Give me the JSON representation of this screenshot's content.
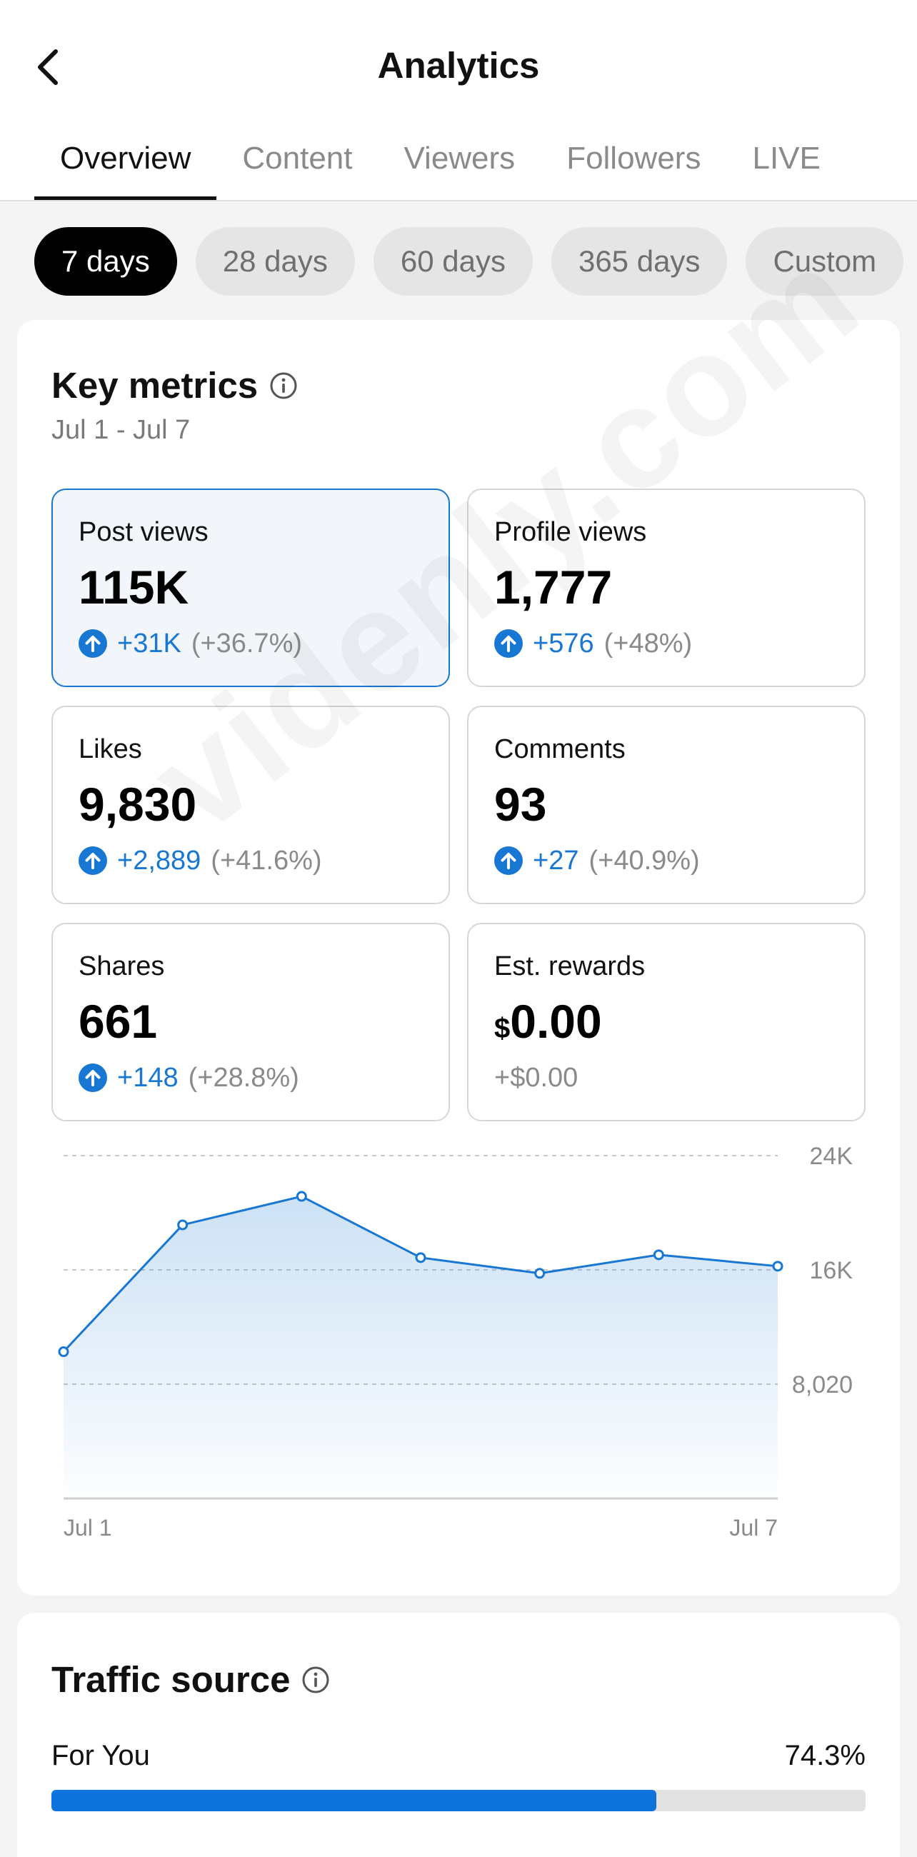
{
  "header": {
    "title": "Analytics",
    "back_icon": "chevron-left-icon"
  },
  "tabs": [
    {
      "label": "Overview",
      "active": true
    },
    {
      "label": "Content",
      "active": false
    },
    {
      "label": "Viewers",
      "active": false
    },
    {
      "label": "Followers",
      "active": false
    },
    {
      "label": "LIVE",
      "active": false
    }
  ],
  "filters": [
    {
      "label": "7 days",
      "active": true
    },
    {
      "label": "28 days",
      "active": false
    },
    {
      "label": "60 days",
      "active": false
    },
    {
      "label": "365 days",
      "active": false
    },
    {
      "label": "Custom",
      "active": false
    }
  ],
  "key_metrics": {
    "title": "Key metrics",
    "date_range": "Jul 1 - Jul 7",
    "items": [
      {
        "label": "Post views",
        "value": "115K",
        "delta": "+31K",
        "pct": "(+36.7%)"
      },
      {
        "label": "Profile views",
        "value": "1,777",
        "delta": "+576",
        "pct": "(+48%)"
      },
      {
        "label": "Likes",
        "value": "9,830",
        "delta": "+2,889",
        "pct": "(+41.6%)"
      },
      {
        "label": "Comments",
        "value": "93",
        "delta": "+27",
        "pct": "(+40.9%)"
      },
      {
        "label": "Shares",
        "value": "661",
        "delta": "+148",
        "pct": "(+28.8%)"
      },
      {
        "label": "Est. rewards",
        "currency": "$",
        "value": "0.00",
        "change": "+$0.00"
      }
    ]
  },
  "chart_data": {
    "type": "area",
    "title": "",
    "xlabel": "",
    "ylabel": "",
    "x": [
      "Jul 1",
      "Jul 2",
      "Jul 3",
      "Jul 4",
      "Jul 5",
      "Jul 6",
      "Jul 7"
    ],
    "x_tick_labels": [
      "Jul 1",
      "Jul 7"
    ],
    "y_tick_labels": [
      "24K",
      "16K",
      "8,020"
    ],
    "y_ticks": [
      24060,
      16040,
      8020
    ],
    "ylim": [
      0,
      24060
    ],
    "grid": "dashed horizontal",
    "series": [
      {
        "values": [
          10300,
          19200,
          21200,
          16900,
          15800,
          17100,
          16300
        ]
      }
    ],
    "color": "#1877d2"
  },
  "watermark": "videnly.com",
  "traffic_source": {
    "title": "Traffic source",
    "items": [
      {
        "label": "For You",
        "value": "74.3%",
        "fraction": 0.743
      }
    ]
  },
  "colors": {
    "accent": "#1877d2",
    "progress": "#0f73de"
  }
}
